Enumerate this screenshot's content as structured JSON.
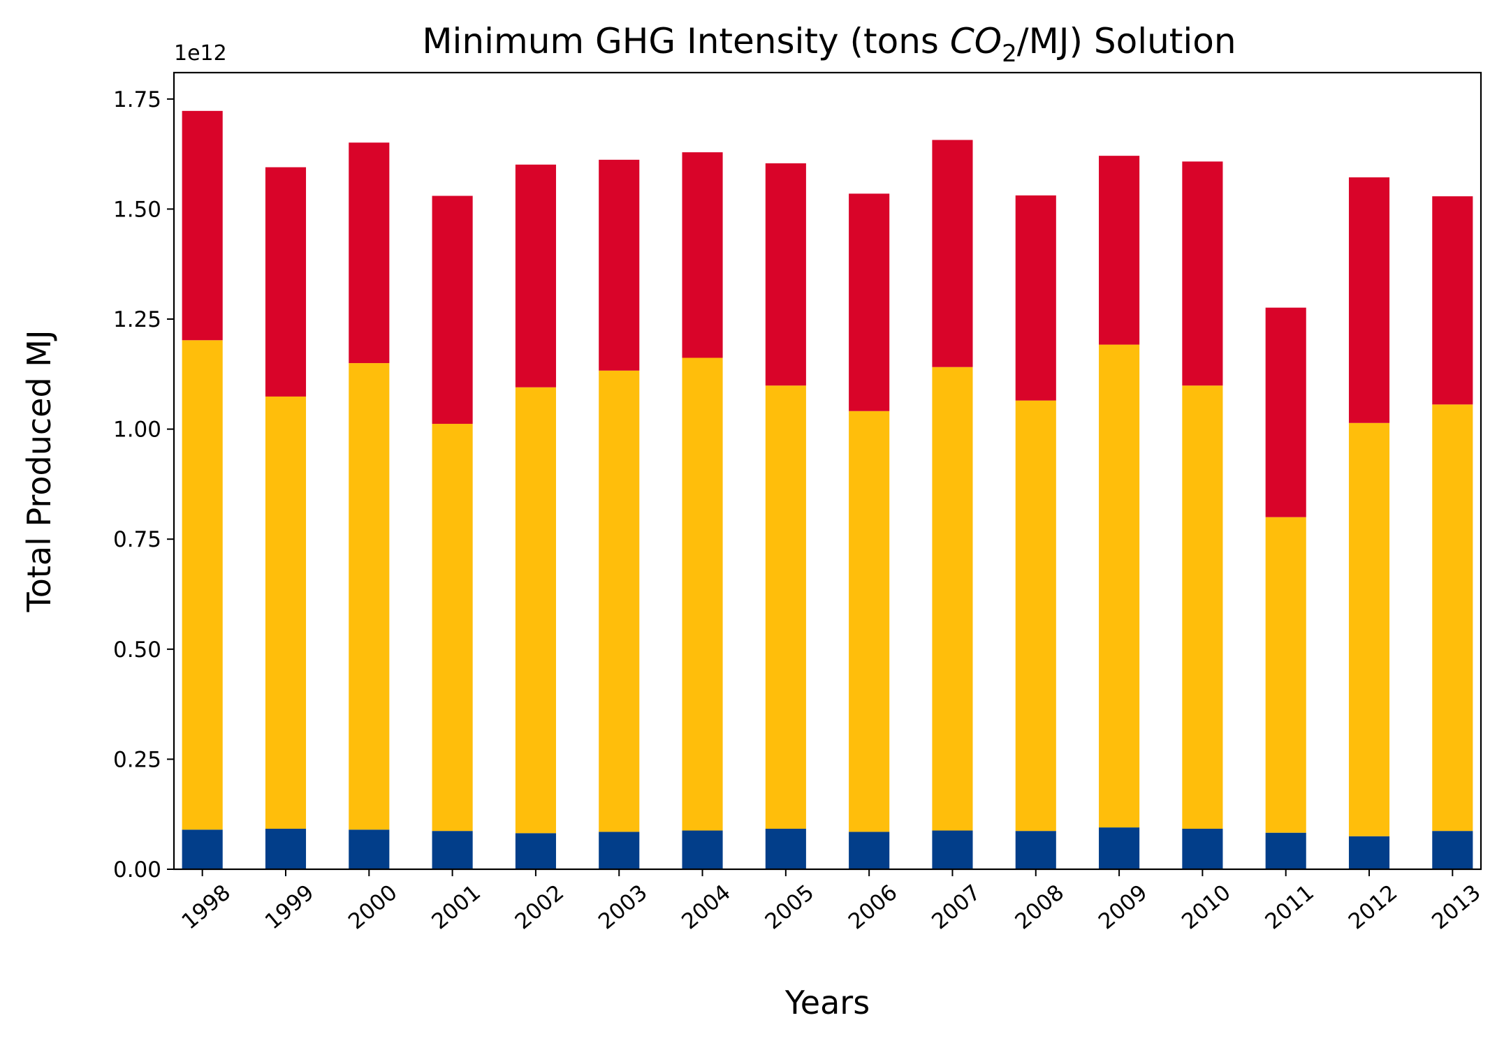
{
  "chart_data": {
    "type": "bar",
    "stacked": true,
    "title_parts": {
      "before": "Minimum GHG Intensity (tons ",
      "formula_main": "CO",
      "formula_sub": "2",
      "after": "/MJ) Solution"
    },
    "xlabel": "Years",
    "ylabel": "Total Produced MJ",
    "y_offset_label": "1e12",
    "y_scale": 1000000000000.0,
    "ylim": [
      0,
      1.81
    ],
    "yticks": [
      0,
      0.25,
      0.5,
      0.75,
      1.0,
      1.25,
      1.5,
      1.75
    ],
    "ytick_labels": [
      "0.00",
      "0.25",
      "0.50",
      "0.75",
      "1.00",
      "1.25",
      "1.50",
      "1.75"
    ],
    "categories": [
      "1998",
      "1999",
      "2000",
      "2001",
      "2002",
      "2003",
      "2004",
      "2005",
      "2006",
      "2007",
      "2008",
      "2009",
      "2010",
      "2011",
      "2012",
      "2013"
    ],
    "series": [
      {
        "color": "#023e8a",
        "values": [
          0.09,
          0.092,
          0.09,
          0.087,
          0.082,
          0.085,
          0.088,
          0.092,
          0.085,
          0.088,
          0.087,
          0.095,
          0.092,
          0.083,
          0.075,
          0.087
        ]
      },
      {
        "color": "#ffbe0b",
        "values": [
          1.112,
          0.982,
          1.06,
          0.925,
          1.013,
          1.048,
          1.074,
          1.007,
          0.956,
          1.053,
          0.978,
          1.097,
          1.007,
          0.717,
          0.939,
          0.969
        ]
      },
      {
        "color": "#d90429",
        "values": [
          0.521,
          0.521,
          0.501,
          0.518,
          0.506,
          0.479,
          0.467,
          0.505,
          0.494,
          0.516,
          0.466,
          0.429,
          0.509,
          0.476,
          0.558,
          0.473
        ]
      }
    ],
    "grid": false,
    "legend": "none"
  }
}
